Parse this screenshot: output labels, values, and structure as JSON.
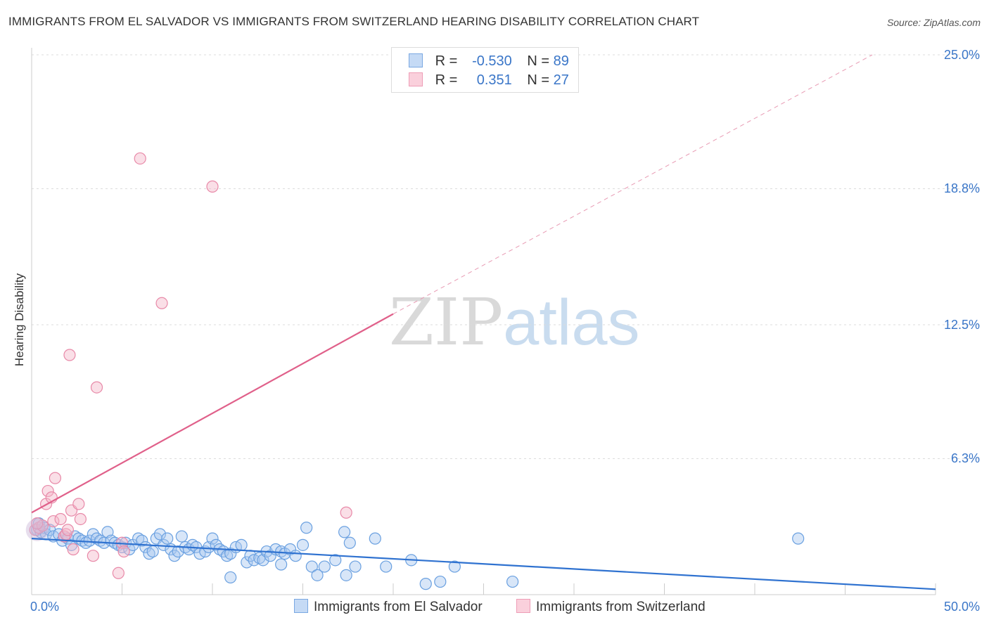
{
  "title": "IMMIGRANTS FROM EL SALVADOR VS IMMIGRANTS FROM SWITZERLAND HEARING DISABILITY CORRELATION CHART",
  "source": "Source: ZipAtlas.com",
  "watermark": {
    "zip": "ZIP",
    "atlas": "atlas"
  },
  "legend": {
    "series1": {
      "r_label": "R =",
      "r_value": "-0.530",
      "n_label": "N =",
      "n_value": "89",
      "color": "#a9c8f0"
    },
    "series2": {
      "r_label": "R =",
      "r_value": "0.351",
      "n_label": "N =",
      "n_value": "27",
      "color": "#f5b7c9"
    }
  },
  "bottom_legend": {
    "series1": "Immigrants from El Salvador",
    "series2": "Immigrants from Switzerland"
  },
  "chart_data": {
    "type": "scatter",
    "title": "IMMIGRANTS FROM EL SALVADOR VS IMMIGRANTS FROM SWITZERLAND HEARING DISABILITY CORRELATION CHART",
    "xlabel": "",
    "ylabel": "Hearing Disability",
    "xlim": [
      0,
      50
    ],
    "ylim": [
      0,
      25
    ],
    "x_tick_labels": [
      "0.0%",
      "50.0%"
    ],
    "y_ticks": [
      6.3,
      12.5,
      18.8,
      25.0
    ],
    "y_tick_labels": [
      "6.3%",
      "12.5%",
      "18.8%",
      "25.0%"
    ],
    "grid": true,
    "series": [
      {
        "name": "Immigrants from El Salvador",
        "color": "#6aa0e0",
        "fill": "#a9c8f0",
        "trend": {
          "x0": 0,
          "y0": 2.6,
          "x1": 50,
          "y1": 0.25,
          "color": "#2f72d0"
        },
        "points": [
          [
            0.3,
            3.0
          ],
          [
            0.4,
            3.3
          ],
          [
            0.5,
            2.9
          ],
          [
            0.7,
            3.1
          ],
          [
            0.8,
            2.8
          ],
          [
            1.0,
            3.0
          ],
          [
            1.2,
            2.7
          ],
          [
            1.5,
            2.8
          ],
          [
            1.7,
            2.5
          ],
          [
            1.8,
            2.7
          ],
          [
            2.0,
            2.6
          ],
          [
            2.2,
            2.3
          ],
          [
            2.4,
            2.7
          ],
          [
            2.6,
            2.6
          ],
          [
            2.8,
            2.5
          ],
          [
            3.0,
            2.4
          ],
          [
            3.2,
            2.5
          ],
          [
            3.4,
            2.8
          ],
          [
            3.6,
            2.6
          ],
          [
            3.8,
            2.5
          ],
          [
            4.0,
            2.4
          ],
          [
            4.2,
            2.9
          ],
          [
            4.4,
            2.5
          ],
          [
            4.6,
            2.4
          ],
          [
            4.8,
            2.3
          ],
          [
            5.0,
            2.2
          ],
          [
            5.2,
            2.4
          ],
          [
            5.4,
            2.1
          ],
          [
            5.6,
            2.3
          ],
          [
            5.9,
            2.6
          ],
          [
            6.1,
            2.5
          ],
          [
            6.3,
            2.2
          ],
          [
            6.5,
            1.9
          ],
          [
            6.7,
            2.0
          ],
          [
            6.9,
            2.6
          ],
          [
            7.1,
            2.8
          ],
          [
            7.3,
            2.3
          ],
          [
            7.5,
            2.6
          ],
          [
            7.7,
            2.1
          ],
          [
            7.9,
            1.8
          ],
          [
            8.1,
            2.0
          ],
          [
            8.3,
            2.7
          ],
          [
            8.5,
            2.2
          ],
          [
            8.7,
            2.1
          ],
          [
            8.9,
            2.3
          ],
          [
            9.1,
            2.2
          ],
          [
            9.3,
            1.9
          ],
          [
            9.6,
            2.0
          ],
          [
            9.8,
            2.2
          ],
          [
            10.0,
            2.6
          ],
          [
            10.2,
            2.3
          ],
          [
            10.4,
            2.1
          ],
          [
            10.6,
            2.0
          ],
          [
            10.8,
            1.8
          ],
          [
            11.0,
            1.9
          ],
          [
            11.3,
            2.2
          ],
          [
            11.6,
            2.3
          ],
          [
            11.9,
            1.5
          ],
          [
            12.1,
            1.8
          ],
          [
            12.3,
            1.6
          ],
          [
            12.6,
            1.7
          ],
          [
            12.8,
            1.6
          ],
          [
            13.0,
            2.0
          ],
          [
            13.2,
            1.8
          ],
          [
            13.5,
            2.1
          ],
          [
            13.8,
            2.0
          ],
          [
            14.0,
            1.9
          ],
          [
            14.3,
            2.1
          ],
          [
            14.6,
            1.8
          ],
          [
            15.0,
            2.3
          ],
          [
            15.2,
            3.1
          ],
          [
            15.5,
            1.3
          ],
          [
            15.8,
            0.9
          ],
          [
            16.2,
            1.3
          ],
          [
            16.8,
            1.6
          ],
          [
            17.3,
            2.9
          ],
          [
            17.6,
            2.4
          ],
          [
            11.0,
            0.8
          ],
          [
            13.8,
            1.4
          ],
          [
            17.4,
            0.9
          ],
          [
            17.9,
            1.3
          ],
          [
            19.0,
            2.6
          ],
          [
            19.6,
            1.3
          ],
          [
            21.0,
            1.6
          ],
          [
            21.8,
            0.5
          ],
          [
            22.6,
            0.6
          ],
          [
            23.4,
            1.3
          ],
          [
            26.6,
            0.6
          ],
          [
            42.4,
            2.6
          ]
        ]
      },
      {
        "name": "Immigrants from Switzerland",
        "color": "#e889a8",
        "fill": "#f5b7c9",
        "trend": {
          "x0": 0,
          "y0": 3.8,
          "x1": 20,
          "y1": 13.0,
          "color": "#e0608a"
        },
        "trend_extension": {
          "x0": 20,
          "y0": 13.0,
          "x1": 46.5,
          "y1": 25.0
        },
        "points": [
          [
            0.2,
            3.0
          ],
          [
            0.4,
            3.1
          ],
          [
            0.6,
            3.2
          ],
          [
            0.8,
            4.2
          ],
          [
            0.9,
            4.8
          ],
          [
            1.1,
            4.5
          ],
          [
            1.2,
            3.4
          ],
          [
            1.3,
            5.4
          ],
          [
            1.6,
            3.5
          ],
          [
            1.8,
            2.7
          ],
          [
            1.9,
            2.8
          ],
          [
            2.0,
            3.0
          ],
          [
            2.1,
            11.1
          ],
          [
            2.2,
            3.9
          ],
          [
            2.3,
            2.1
          ],
          [
            2.6,
            4.2
          ],
          [
            2.7,
            3.5
          ],
          [
            3.4,
            1.8
          ],
          [
            3.6,
            9.6
          ],
          [
            4.8,
            1.0
          ],
          [
            5.0,
            2.4
          ],
          [
            5.1,
            2.0
          ],
          [
            6.0,
            20.2
          ],
          [
            7.2,
            13.5
          ],
          [
            10.0,
            18.9
          ],
          [
            17.4,
            3.8
          ],
          [
            0.3,
            3.3
          ]
        ]
      }
    ]
  }
}
